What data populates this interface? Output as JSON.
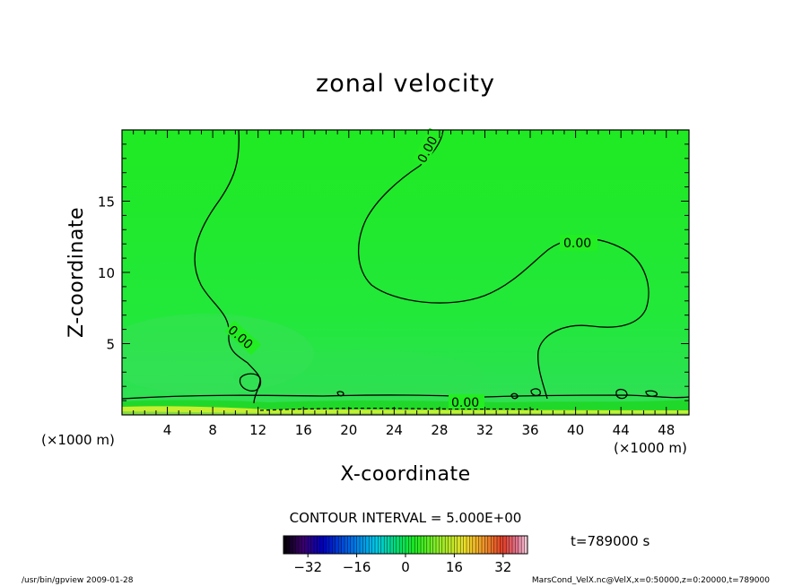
{
  "chart_data": {
    "type": "contour",
    "title": "zonal velocity",
    "xlabel": "X-coordinate",
    "ylabel": "Z-coordinate",
    "x_unit": "(×1000 m)",
    "z_unit": "(×1000 m)",
    "xlim": [
      0,
      50
    ],
    "zlim": [
      0,
      20
    ],
    "x_ticks": [
      "4",
      "8",
      "12",
      "16",
      "20",
      "24",
      "28",
      "32",
      "36",
      "40",
      "44",
      "48"
    ],
    "z_ticks": [
      "5",
      "10",
      "15"
    ],
    "contour_interval_label": "CONTOUR INTERVAL = 5.000E+00",
    "contour_level_label": "0.00",
    "contour_labels": [
      {
        "text": "0.00",
        "x": 26.3,
        "z": 19.2
      },
      {
        "text": "0.00",
        "x": 40.3,
        "z": 12.2
      },
      {
        "text": "0.00",
        "x": 10.5,
        "z": 5.6
      },
      {
        "text": "0.00",
        "x": 30.4,
        "z": 0.8
      }
    ],
    "colorbar": {
      "range": [
        -40,
        40
      ],
      "ticks": [
        "−32",
        "−16",
        "0",
        "16",
        "32"
      ],
      "tick_values": [
        -32,
        -16,
        0,
        16,
        32
      ]
    },
    "time_label": "t=789000 s",
    "field_color": "#22ee22"
  },
  "footer": {
    "left": "/usr/bin/gpview   2009-01-28",
    "right": "MarsCond_VelX.nc@VelX,x=0:50000,z=0:20000,t=789000"
  }
}
